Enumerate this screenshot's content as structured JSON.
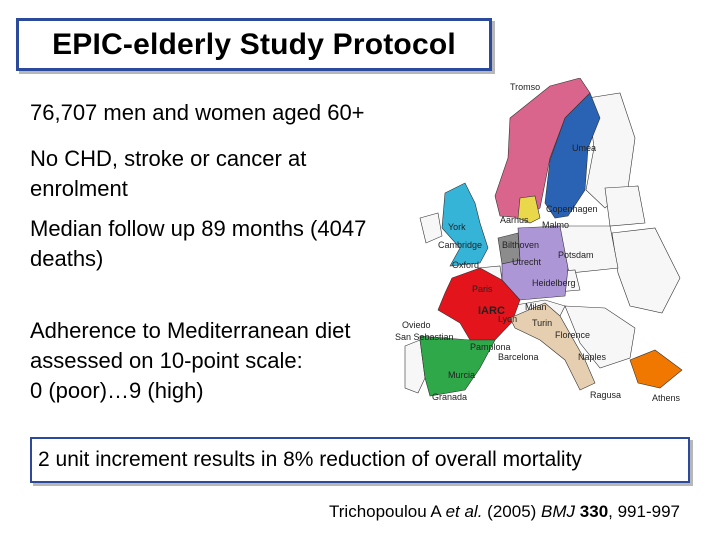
{
  "title": "EPIC-elderly Study Protocol",
  "bullets": [
    {
      "lines": [
        "76,707 men and women aged 60+"
      ]
    },
    {
      "lines": [
        "No CHD, stroke or cancer at",
        "enrolment"
      ]
    },
    {
      "lines": [
        "Median follow up 89 months (4047",
        "deaths)"
      ]
    },
    {
      "lines": [
        "Adherence to Mediterranean diet",
        "assessed on 10-point scale:",
        "0 (poor)…9 (high)"
      ]
    }
  ],
  "map": {
    "cities": {
      "tromso": "Tromso",
      "umea": "Umea",
      "copenhagen": "Copenhagen",
      "aarhus": "Aarhus",
      "malmo": "Malmo",
      "york": "York",
      "cambridge": "Cambridge",
      "bilthoven": "Bilthoven",
      "potsdam": "Potsdam",
      "oxford": "Oxford",
      "utrecht": "Utrecht",
      "paris": "Paris",
      "heidelberg": "Heidelberg",
      "milan": "Milan",
      "iarc": "IARC",
      "lyon": "Lyon",
      "turin": "Turin",
      "oviedo": "Oviedo",
      "florence": "Florence",
      "san_sebastian": "San Sebastian",
      "pamplona": "Pamplona",
      "barcelona": "Barcelona",
      "naples": "Naples",
      "murcia": "Murcia",
      "athens": "Athens",
      "granada": "Granada",
      "ragusa": "Ragusa"
    },
    "colors": {
      "norway": "#d9648c",
      "sweden": "#2a62b4",
      "denmark": "#e8d84a",
      "uk": "#36b4d8",
      "netherlands": "#8c8c8c",
      "germany": "#ad96d6",
      "france": "#e4141c",
      "spain": "#2fa84a",
      "italy": "#e6cfb0",
      "greece": "#f07800",
      "other": "#f7f7f7"
    }
  },
  "note": "2 unit increment results in 8% reduction of overall mortality",
  "citation": {
    "authors": "Trichopoulou A",
    "etal": "et al.",
    "year": "(2005)",
    "journal": "BMJ",
    "volume": "330",
    "pages": ", 991-997"
  }
}
